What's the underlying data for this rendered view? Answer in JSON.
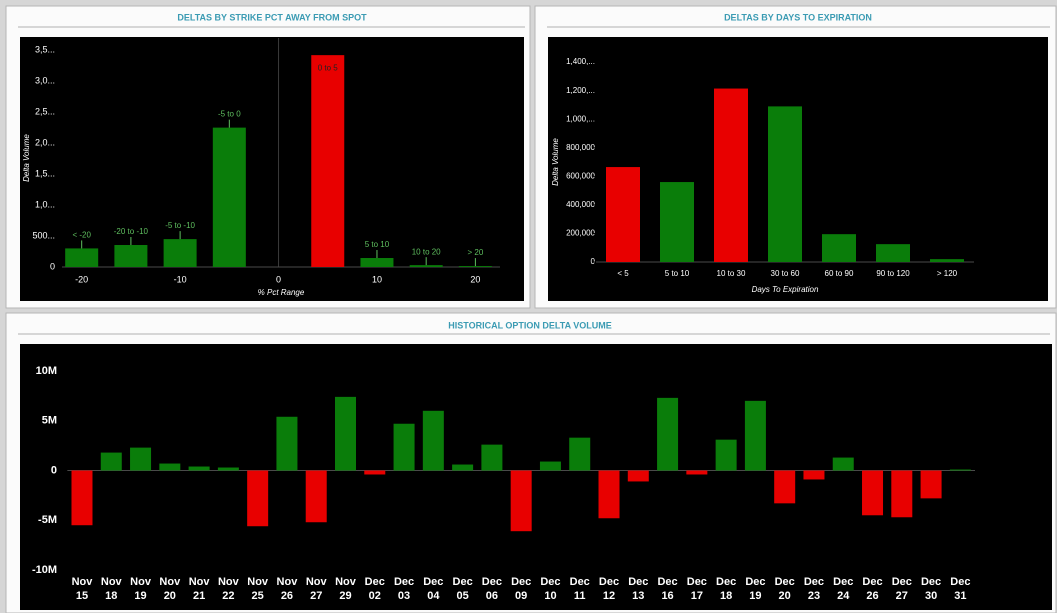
{
  "chart_data": [
    {
      "type": "bar",
      "title": "DELTAS BY STRIKE PCT AWAY FROM SPOT",
      "x_label": "% Pct Range",
      "y_label": "Delta Volume",
      "x": [
        -20,
        -15,
        -10,
        -5,
        5,
        10,
        15,
        20
      ],
      "values": [
        300,
        355,
        450,
        2250,
        3420,
        145,
        30,
        15
      ],
      "labels": [
        "< -20",
        "-20 to -10",
        "-5 to -10",
        "-5 to 0",
        "0 to 5",
        "5 to 10",
        "10 to 20",
        "> 20"
      ],
      "colors": [
        "#0a7d0a",
        "#0a7d0a",
        "#0a7d0a",
        "#0a7d0a",
        "#e80000",
        "#0a7d0a",
        "#0a7d0a",
        "#0a7d0a"
      ],
      "xlim": [
        -22,
        22.5
      ],
      "xticks": [
        -20,
        -10,
        0,
        10,
        20
      ],
      "ylim": [
        0,
        3600
      ],
      "yticks": [
        0,
        {
          "value": 500,
          "label": "500..."
        },
        {
          "value": 1000,
          "label": "1,0..."
        },
        {
          "value": 1500,
          "label": "1,5..."
        },
        {
          "value": 2000,
          "label": "2,0..."
        },
        {
          "value": 2500,
          "label": "2,5..."
        },
        {
          "value": 3000,
          "label": "3,0..."
        },
        {
          "value": 3500,
          "label": "3,5..."
        }
      ]
    },
    {
      "type": "bar",
      "title": "DELTAS BY DAYS TO EXPIRATION",
      "x_label": "Days To Expiration",
      "y_label": "Delta Volume",
      "categories": [
        "< 5",
        "5 to 10",
        "10 to 30",
        "30 to 60",
        "60 to 90",
        "90 to 120",
        "> 120"
      ],
      "values": [
        665000,
        560000,
        1215000,
        1090000,
        195000,
        125000,
        20000
      ],
      "colors": [
        "#e80000",
        "#0a7d0a",
        "#e80000",
        "#0a7d0a",
        "#0a7d0a",
        "#0a7d0a",
        "#0a7d0a"
      ],
      "ylim": [
        0,
        1450000
      ],
      "yticks": [
        0,
        {
          "value": 200000,
          "label": "200,000"
        },
        {
          "value": 400000,
          "label": "400,000"
        },
        {
          "value": 600000,
          "label": "600,000"
        },
        {
          "value": 800000,
          "label": "800,000"
        },
        {
          "value": 1000000,
          "label": "1,000,..."
        },
        {
          "value": 1200000,
          "label": "1,200,..."
        },
        {
          "value": 1400000,
          "label": "1,400,..."
        }
      ]
    },
    {
      "type": "bar",
      "title": "HISTORICAL OPTION DELTA VOLUME",
      "categories": [
        "Nov 15",
        "Nov 18",
        "Nov 19",
        "Nov 20",
        "Nov 21",
        "Nov 22",
        "Nov 25",
        "Nov 26",
        "Nov 27",
        "Nov 29",
        "Dec 02",
        "Dec 03",
        "Dec 04",
        "Dec 05",
        "Dec 06",
        "Dec 09",
        "Dec 10",
        "Dec 11",
        "Dec 12",
        "Dec 13",
        "Dec 16",
        "Dec 17",
        "Dec 18",
        "Dec 19",
        "Dec 20",
        "Dec 23",
        "Dec 24",
        "Dec 26",
        "Dec 27",
        "Dec 30",
        "Dec 31"
      ],
      "values": [
        -5500000,
        1800000,
        2300000,
        700000,
        400000,
        300000,
        -5600000,
        5400000,
        -5200000,
        7400000,
        -400000,
        4700000,
        6000000,
        600000,
        2600000,
        -6100000,
        900000,
        3300000,
        -4800000,
        -1100000,
        7300000,
        -400000,
        3100000,
        7000000,
        -3300000,
        -900000,
        1300000,
        -4500000,
        -4700000,
        -2800000,
        100000
      ],
      "colors": [
        "#e80000",
        "#0a7d0a",
        "#0a7d0a",
        "#0a7d0a",
        "#0a7d0a",
        "#0a7d0a",
        "#e80000",
        "#0a7d0a",
        "#e80000",
        "#0a7d0a",
        "#e80000",
        "#0a7d0a",
        "#0a7d0a",
        "#0a7d0a",
        "#0a7d0a",
        "#e80000",
        "#0a7d0a",
        "#0a7d0a",
        "#e80000",
        "#e80000",
        "#0a7d0a",
        "#e80000",
        "#0a7d0a",
        "#0a7d0a",
        "#e80000",
        "#e80000",
        "#0a7d0a",
        "#e80000",
        "#e80000",
        "#e80000",
        "#0a7d0a"
      ],
      "ylim": [
        -10000000,
        10000000
      ],
      "yticks": [
        {
          "value": -10000000,
          "label": "-10M"
        },
        {
          "value": -5000000,
          "label": "-5M"
        },
        0,
        {
          "value": 5000000,
          "label": "5M"
        },
        {
          "value": 10000000,
          "label": "10M"
        }
      ]
    }
  ]
}
